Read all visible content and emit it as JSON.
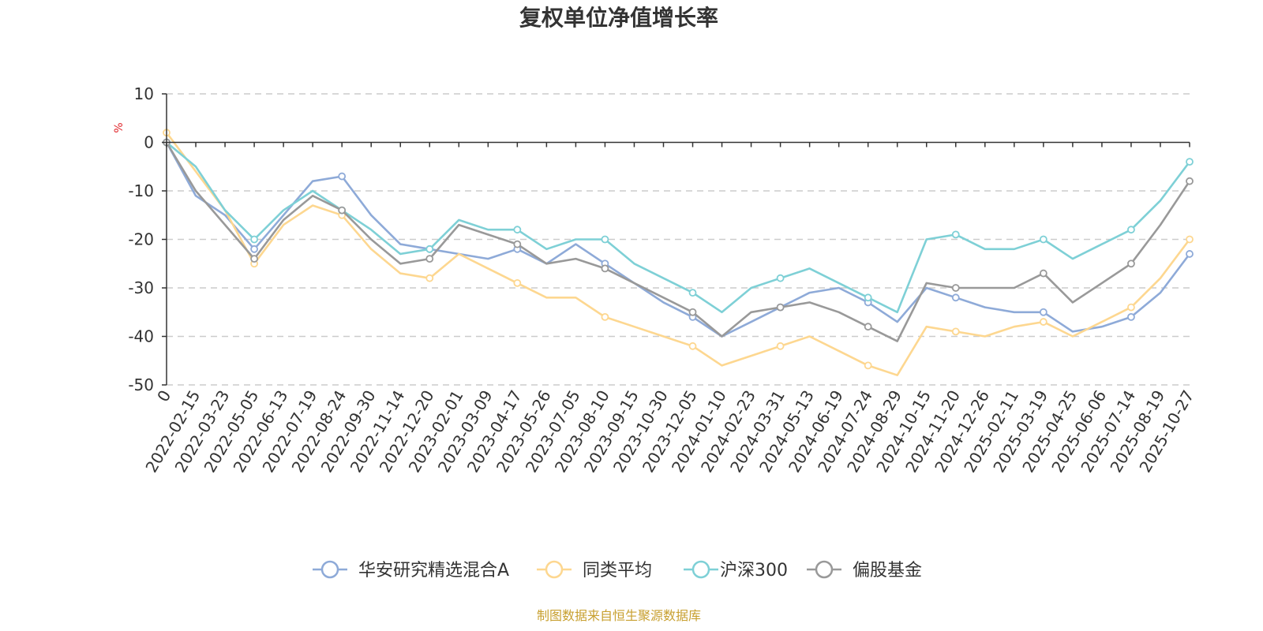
{
  "chart_data": {
    "type": "line",
    "title": "复权单位净值增长率",
    "ylabel": "%",
    "xlabel": "",
    "ylim": [
      -50,
      10
    ],
    "yticks": [
      10,
      0,
      -10,
      -20,
      -30,
      -40,
      -50
    ],
    "grid": true,
    "legend_position": "bottom-center",
    "categories": [
      "0",
      "2022-02-15",
      "2022-03-23",
      "2022-05-05",
      "2022-06-13",
      "2022-07-19",
      "2022-08-24",
      "2022-09-30",
      "2022-11-14",
      "2022-12-20",
      "2023-02-01",
      "2023-03-09",
      "2023-04-17",
      "2023-05-26",
      "2023-07-05",
      "2023-08-10",
      "2023-09-15",
      "2023-10-30",
      "2023-12-05",
      "2024-01-10",
      "2024-02-23",
      "2024-03-31",
      "2024-05-13",
      "2024-06-19",
      "2024-07-24",
      "2024-08-29",
      "2024-10-15",
      "2024-11-20",
      "2024-12-26",
      "2025-02-11",
      "2025-03-19",
      "2025-04-25",
      "2025-06-06",
      "2025-07-14",
      "2025-08-19",
      "2025-10-27"
    ],
    "series": [
      {
        "name": "华安研究精选混合A",
        "color": "#8eaad8",
        "values": [
          0,
          -11,
          -15,
          -22,
          -15,
          -8,
          -7,
          -15,
          -21,
          -22,
          -23,
          -24,
          -22,
          -25,
          -21,
          -25,
          -29,
          -33,
          -36,
          -40,
          -37,
          -34,
          -31,
          -30,
          -33,
          -37,
          -30,
          -32,
          -34,
          -35,
          -35,
          -39,
          -38,
          -36,
          -31,
          -23
        ]
      },
      {
        "name": "同类平均",
        "color": "#fdd790",
        "values": [
          2,
          -6,
          -14,
          -25,
          -17,
          -13,
          -15,
          -22,
          -27,
          -28,
          -23,
          -26,
          -29,
          -32,
          -32,
          -36,
          -38,
          -40,
          -42,
          -46,
          -44,
          -42,
          -40,
          -43,
          -46,
          -48,
          -38,
          -39,
          -40,
          -38,
          -37,
          -40,
          -37,
          -34,
          -28,
          -20
        ]
      },
      {
        "name": "沪深300",
        "color": "#7ed0d6",
        "values": [
          0,
          -5,
          -14,
          -20,
          -14,
          -10,
          -14,
          -18,
          -23,
          -22,
          -16,
          -18,
          -18,
          -22,
          -20,
          -20,
          -25,
          -28,
          -31,
          -35,
          -30,
          -28,
          -26,
          -29,
          -32,
          -35,
          -20,
          -19,
          -22,
          -22,
          -20,
          -24,
          -21,
          -18,
          -12,
          -4
        ]
      },
      {
        "name": "偏股基金",
        "color": "#999999",
        "values": [
          0,
          -10,
          -17,
          -24,
          -16,
          -11,
          -14,
          -20,
          -25,
          -24,
          -17,
          -19,
          -21,
          -25,
          -24,
          -26,
          -29,
          -32,
          -35,
          -40,
          -35,
          -34,
          -33,
          -35,
          -38,
          -41,
          -29,
          -30,
          -30,
          -30,
          -27,
          -33,
          -29,
          -25,
          -17,
          -8
        ]
      }
    ]
  },
  "source_text": "制图数据来自恒生聚源数据库"
}
